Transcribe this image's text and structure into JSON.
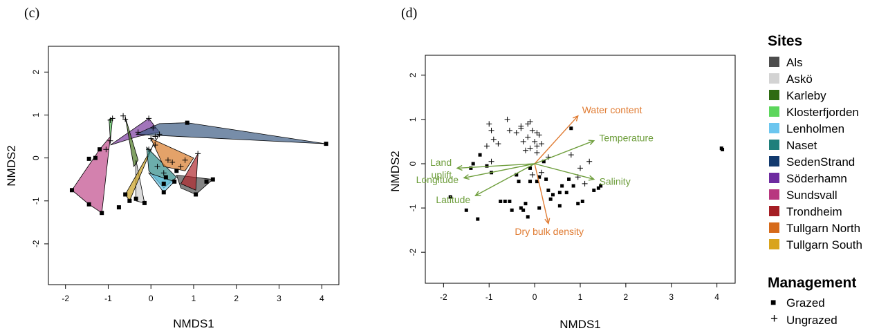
{
  "chart_data": [
    {
      "panel_label": "(c)",
      "type": "scatter",
      "xlabel": "NMDS1",
      "ylabel": "NMDS2",
      "xlim": [
        -2.4,
        4.4
      ],
      "ylim": [
        -2.95,
        2.6
      ],
      "xticks": [
        -2,
        -1,
        0,
        1,
        2,
        3,
        4
      ],
      "yticks": [
        -2,
        -1,
        0,
        1,
        2
      ],
      "hulls": [
        {
          "site": "Sundsvall",
          "color": "#C04C8C",
          "points": [
            [
              -1.85,
              -0.75
            ],
            [
              -1.2,
              0.2
            ],
            [
              -0.95,
              0.5
            ],
            [
              -1.15,
              -1.28
            ],
            [
              -1.45,
              -1.08
            ]
          ]
        },
        {
          "site": "Söderhamn",
          "color": "#7A3A9E",
          "points": [
            [
              -0.95,
              0.3
            ],
            [
              -0.05,
              0.92
            ],
            [
              0.2,
              0.6
            ],
            [
              -0.3,
              0.5
            ]
          ]
        },
        {
          "site": "SedenStrand",
          "color": "#3D5D85",
          "points": [
            [
              -0.35,
              0.55
            ],
            [
              0.2,
              0.8
            ],
            [
              0.85,
              0.82
            ],
            [
              4.1,
              0.33
            ]
          ]
        },
        {
          "site": "Klosterfjorden",
          "color": "#55C85A",
          "points": [
            [
              -0.98,
              0.9
            ],
            [
              -0.9,
              0.92
            ],
            [
              -0.95,
              0.4
            ]
          ]
        },
        {
          "site": "Karleby",
          "color": "#4C7A22",
          "points": [
            [
              -0.6,
              0.95
            ],
            [
              -0.4,
              -0.2
            ],
            [
              -0.3,
              -0.05
            ]
          ]
        },
        {
          "site": "Askö",
          "color": "#CDCDCD",
          "points": [
            [
              -0.35,
              -0.05
            ],
            [
              -0.15,
              -1.05
            ],
            [
              -0.35,
              -1.0
            ]
          ]
        },
        {
          "site": "Tullgarn South",
          "color": "#C9A020",
          "points": [
            [
              -0.6,
              -0.85
            ],
            [
              0.2,
              0.55
            ],
            [
              0.05,
              0.3
            ],
            [
              -0.5,
              -1.0
            ]
          ]
        },
        {
          "site": "Naset",
          "color": "#2E8A88",
          "points": [
            [
              -0.1,
              0.25
            ],
            [
              0.6,
              -0.45
            ],
            [
              0.3,
              -0.7
            ],
            [
              -0.05,
              -0.3
            ]
          ]
        },
        {
          "site": "Lenholmen",
          "color": "#6DC8E8",
          "points": [
            [
              -0.05,
              -0.35
            ],
            [
              0.55,
              -0.55
            ],
            [
              0.3,
              -0.8
            ]
          ]
        },
        {
          "site": "Tullgarn North",
          "color": "#D87A2A",
          "points": [
            [
              0.0,
              0.45
            ],
            [
              1.0,
              0.0
            ],
            [
              0.8,
              -0.3
            ],
            [
              0.3,
              -0.2
            ]
          ]
        },
        {
          "site": "Als",
          "color": "#505050",
          "points": [
            [
              0.6,
              -0.4
            ],
            [
              1.45,
              -0.5
            ],
            [
              1.05,
              -0.85
            ],
            [
              0.7,
              -0.7
            ]
          ]
        },
        {
          "site": "Trondheim",
          "color": "#B0282E",
          "points": [
            [
              0.7,
              -0.6
            ],
            [
              1.1,
              0.1
            ],
            [
              1.05,
              -0.75
            ]
          ]
        }
      ],
      "grazed_points": [
        [
          -1.85,
          -0.75
        ],
        [
          -1.45,
          -1.08
        ],
        [
          -1.15,
          -1.28
        ],
        [
          -1.45,
          -0.02
        ],
        [
          -1.3,
          0.0
        ],
        [
          -1.2,
          0.2
        ],
        [
          -0.75,
          -1.15
        ],
        [
          -0.6,
          -0.85
        ],
        [
          -0.5,
          -1.0
        ],
        [
          -0.35,
          -0.95
        ],
        [
          -0.15,
          -1.05
        ],
        [
          0.3,
          -0.6
        ],
        [
          0.3,
          -0.8
        ],
        [
          0.35,
          -0.45
        ],
        [
          0.55,
          -0.55
        ],
        [
          0.6,
          -0.3
        ],
        [
          0.85,
          0.82
        ],
        [
          1.05,
          -0.85
        ],
        [
          1.3,
          -0.55
        ],
        [
          1.45,
          -0.5
        ],
        [
          4.1,
          0.33
        ]
      ],
      "ungrazed_points": [
        [
          -0.95,
          0.88
        ],
        [
          -0.9,
          0.92
        ],
        [
          -0.95,
          0.4
        ],
        [
          -1.05,
          0.2
        ],
        [
          -0.65,
          0.98
        ],
        [
          -0.6,
          0.9
        ],
        [
          -0.3,
          0.6
        ],
        [
          -0.05,
          0.92
        ],
        [
          0.05,
          0.7
        ],
        [
          0.1,
          0.5
        ],
        [
          0.2,
          0.55
        ],
        [
          0.1,
          0.3
        ],
        [
          -0.05,
          0.2
        ],
        [
          0.0,
          0.45
        ],
        [
          0.4,
          -0.05
        ],
        [
          0.5,
          -0.1
        ],
        [
          0.15,
          -0.2
        ],
        [
          0.7,
          -0.2
        ],
        [
          0.8,
          -0.05
        ],
        [
          1.1,
          0.1
        ],
        [
          0.3,
          -0.35
        ]
      ]
    },
    {
      "panel_label": "(d)",
      "type": "scatter",
      "xlabel": "NMDS1",
      "ylabel": "NMDS2",
      "xlim": [
        -2.4,
        4.4
      ],
      "ylim": [
        -2.7,
        2.45
      ],
      "xticks": [
        -2,
        -1,
        0,
        1,
        2,
        3,
        4
      ],
      "yticks": [
        -2,
        -1,
        0,
        1,
        2
      ],
      "grazed_points": [
        [
          -1.85,
          -0.75
        ],
        [
          -1.5,
          -1.05
        ],
        [
          -1.35,
          0.0
        ],
        [
          -1.2,
          0.2
        ],
        [
          -1.4,
          -0.1
        ],
        [
          -1.25,
          -1.25
        ],
        [
          -1.05,
          -0.05
        ],
        [
          -0.95,
          -0.2
        ],
        [
          -0.65,
          -0.85
        ],
        [
          -0.55,
          -0.85
        ],
        [
          -0.3,
          -1.0
        ],
        [
          -0.5,
          -1.05
        ],
        [
          -0.25,
          -1.05
        ],
        [
          -0.15,
          -1.2
        ],
        [
          -0.1,
          -0.4
        ],
        [
          -0.35,
          -0.4
        ],
        [
          -0.4,
          -0.25
        ],
        [
          -0.1,
          -0.1
        ],
        [
          0.1,
          -0.3
        ],
        [
          0.25,
          -0.35
        ],
        [
          0.3,
          -0.6
        ],
        [
          0.35,
          -0.8
        ],
        [
          0.4,
          -0.7
        ],
        [
          0.6,
          -0.5
        ],
        [
          0.55,
          -0.65
        ],
        [
          0.7,
          -0.65
        ],
        [
          0.8,
          0.8
        ],
        [
          0.75,
          -0.35
        ],
        [
          0.85,
          -0.5
        ],
        [
          1.05,
          -0.85
        ],
        [
          1.3,
          -0.6
        ],
        [
          1.4,
          -0.55
        ],
        [
          1.45,
          -0.5
        ],
        [
          0.95,
          -0.9
        ],
        [
          0.2,
          0.05
        ],
        [
          -0.75,
          -0.85
        ],
        [
          4.1,
          0.35
        ],
        [
          4.12,
          0.32
        ],
        [
          -0.2,
          -0.9
        ],
        [
          0.1,
          -1.0
        ],
        [
          0.05,
          -0.4
        ],
        [
          0.55,
          -0.95
        ]
      ],
      "ungrazed_points": [
        [
          -1.0,
          0.9
        ],
        [
          -0.95,
          0.75
        ],
        [
          -1.05,
          0.4
        ],
        [
          -0.8,
          0.45
        ],
        [
          -0.9,
          0.55
        ],
        [
          -0.6,
          1.0
        ],
        [
          -0.55,
          0.75
        ],
        [
          -0.4,
          0.7
        ],
        [
          -0.3,
          0.8
        ],
        [
          -0.25,
          0.5
        ],
        [
          -0.15,
          0.9
        ],
        [
          -0.1,
          0.95
        ],
        [
          -0.05,
          0.75
        ],
        [
          0.05,
          0.7
        ],
        [
          0.1,
          0.65
        ],
        [
          -0.2,
          0.3
        ],
        [
          0.05,
          0.4
        ],
        [
          0.15,
          0.45
        ],
        [
          0.0,
          0.5
        ],
        [
          -0.15,
          0.6
        ],
        [
          0.8,
          0.2
        ],
        [
          1.2,
          0.05
        ],
        [
          1.0,
          -0.1
        ],
        [
          1.1,
          -0.45
        ],
        [
          0.95,
          -0.3
        ],
        [
          0.15,
          -0.2
        ],
        [
          -0.05,
          -0.25
        ],
        [
          -0.95,
          0.05
        ],
        [
          -0.1,
          0.35
        ],
        [
          0.05,
          0.25
        ],
        [
          0.3,
          0.15
        ],
        [
          -0.3,
          0.85
        ]
      ],
      "vectors": [
        {
          "label": "Water content",
          "end": [
            0.95,
            1.08
          ],
          "color": "#E07B32"
        },
        {
          "label": "Temperature",
          "end": [
            1.3,
            0.52
          ],
          "color": "#6E9E3C"
        },
        {
          "label": "Salinity",
          "end": [
            1.3,
            -0.35
          ],
          "color": "#6E9E3C"
        },
        {
          "label": "Dry bulk density",
          "end": [
            0.3,
            -1.35
          ],
          "color": "#E07B32"
        },
        {
          "label": "Land\nuplift",
          "end": [
            -1.7,
            -0.1
          ],
          "color": "#6E9E3C"
        },
        {
          "label": "Longitude",
          "end": [
            -1.55,
            -0.32
          ],
          "color": "#6E9E3C"
        },
        {
          "label": "Latitude",
          "end": [
            -1.3,
            -0.72
          ],
          "color": "#6E9E3C"
        }
      ]
    }
  ],
  "legend": {
    "sites_title": "Sites",
    "sites": [
      {
        "name": "Als",
        "color": "#4D4D4D"
      },
      {
        "name": "Askö",
        "color": "#D3D3D3"
      },
      {
        "name": "Karleby",
        "color": "#2E6B12"
      },
      {
        "name": "Klosterfjorden",
        "color": "#5CD65C"
      },
      {
        "name": "Lenholmen",
        "color": "#6CC6EF"
      },
      {
        "name": "Naset",
        "color": "#1F7F7B"
      },
      {
        "name": "SedenStrand",
        "color": "#123A6E"
      },
      {
        "name": "Söderhamn",
        "color": "#6E2BA0"
      },
      {
        "name": "Sundsvall",
        "color": "#B8377F"
      },
      {
        "name": "Trondheim",
        "color": "#A51E24"
      },
      {
        "name": "Tullgarn North",
        "color": "#D66A1A"
      },
      {
        "name": "Tullgarn South",
        "color": "#D9A41C"
      }
    ],
    "management_title": "Management",
    "management": [
      {
        "name": "Grazed",
        "symbol": "■"
      },
      {
        "name": "Ungrazed",
        "symbol": "+"
      }
    ]
  }
}
